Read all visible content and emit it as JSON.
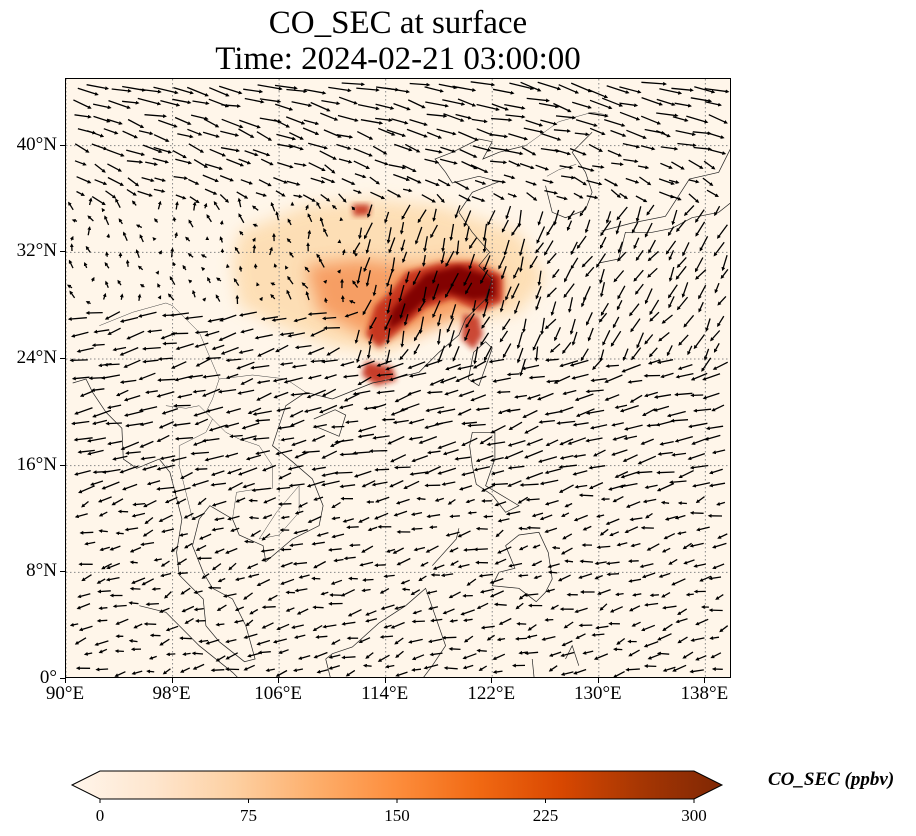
{
  "title": {
    "line1": "CO_SEC at surface",
    "line2": "Time: 2024-02-21 03:00:00"
  },
  "map": {
    "lon_range": [
      90,
      140
    ],
    "lat_range": [
      0,
      45
    ],
    "lat_ticks": [
      {
        "value": 40,
        "label": "40°N"
      },
      {
        "value": 32,
        "label": "32°N"
      },
      {
        "value": 24,
        "label": "24°N"
      },
      {
        "value": 16,
        "label": "16°N"
      },
      {
        "value": 8,
        "label": "8°N"
      },
      {
        "value": 0,
        "label": "0°"
      }
    ],
    "lon_ticks": [
      {
        "value": 90,
        "label": "90°E"
      },
      {
        "value": 98,
        "label": "98°E"
      },
      {
        "value": 106,
        "label": "106°E"
      },
      {
        "value": 114,
        "label": "114°E"
      },
      {
        "value": 122,
        "label": "122°E"
      },
      {
        "value": 130,
        "label": "130°E"
      },
      {
        "value": 138,
        "label": "138°E"
      }
    ],
    "gridlines": true,
    "plume_core_ppbv": 300,
    "colors": {
      "background": "#fff6ea",
      "low": "#fdd9a8",
      "mid": "#f4894a",
      "high": "#c22a12",
      "max": "#7f0000",
      "vectors": "#000000"
    }
  },
  "colorbar": {
    "label": "CO_SEC (ppbv)",
    "ticks": [
      {
        "value": 0,
        "label": "0"
      },
      {
        "value": 75,
        "label": "75"
      },
      {
        "value": 150,
        "label": "150"
      },
      {
        "value": 225,
        "label": "225"
      },
      {
        "value": 300,
        "label": "300"
      }
    ],
    "range": [
      0,
      300
    ],
    "extend": "both",
    "colormap": [
      "#fff5eb",
      "#fee6ce",
      "#fdd0a2",
      "#fdae6b",
      "#fd8d3c",
      "#f16913",
      "#d94801",
      "#a63603",
      "#7f2704"
    ]
  }
}
